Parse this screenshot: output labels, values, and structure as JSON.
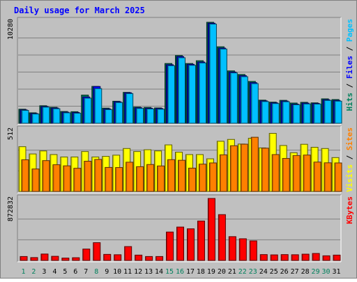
{
  "chart_data": {
    "type": "bar",
    "title": "Daily usage for March 2025",
    "categories": [
      "1",
      "2",
      "3",
      "4",
      "5",
      "6",
      "7",
      "8",
      "9",
      "10",
      "11",
      "12",
      "13",
      "14",
      "15",
      "16",
      "17",
      "18",
      "19",
      "20",
      "21",
      "22",
      "23",
      "24",
      "25",
      "26",
      "27",
      "28",
      "29",
      "30",
      "31"
    ],
    "weekend_days": [
      "1",
      "2",
      "8",
      "15",
      "16",
      "22",
      "23",
      "29",
      "30"
    ],
    "panels": [
      {
        "id": "hits",
        "max_label": "10280",
        "ymax": 10280,
        "axis_labels": [
          {
            "text": "Hits",
            "color": "#00805c"
          },
          {
            "text": "Files",
            "color": "#0000ff"
          },
          {
            "text": "Pages",
            "color": "#00c0ff"
          }
        ],
        "series": [
          {
            "name": "Hits",
            "color": "#00805c",
            "values": [
              1410,
              1050,
              1760,
              1600,
              1180,
              1160,
              2830,
              3700,
              1520,
              2210,
              3100,
              1620,
              1590,
              1540,
              6000,
              6800,
              6000,
              6280,
              10140,
              7680,
              5260,
              4900,
              4200,
              2320,
              2120,
              2300,
              2030,
              2100,
              2050,
              2450,
              2380
            ]
          },
          {
            "name": "Files",
            "color": "#0000ff",
            "values": [
              1340,
              980,
              1680,
              1530,
              1110,
              1080,
              2640,
              3690,
              1440,
              2160,
              3060,
              1560,
              1510,
              1480,
              5880,
              6700,
              5920,
              6150,
              10050,
              7550,
              5150,
              4780,
              4080,
              2250,
              2050,
              2230,
              1920,
              2020,
              1990,
              2360,
              2290
            ]
          },
          {
            "name": "Pages",
            "color": "#00c0ff",
            "values": [
              1290,
              930,
              1620,
              1460,
              1050,
              1010,
              2520,
              3480,
              1370,
              2080,
              2980,
              1490,
              1440,
              1410,
              5780,
              6580,
              5820,
              6060,
              9960,
              7460,
              5060,
              4680,
              3980,
              2180,
              1980,
              2160,
              1860,
              1940,
              1930,
              2290,
              2220
            ]
          }
        ]
      },
      {
        "id": "visits",
        "max_label": "512",
        "ymax": 512,
        "axis_labels": [
          {
            "text": "Visits",
            "color": "#ffff00"
          },
          {
            "text": "Sites",
            "color": "#ff8000"
          }
        ],
        "series": [
          {
            "name": "Visits",
            "color": "#ffff00",
            "values": [
              370,
              310,
              335,
              305,
              285,
              285,
              330,
              285,
              290,
              300,
              355,
              330,
              345,
              335,
              385,
              325,
              305,
              305,
              270,
              415,
              430,
              392,
              440,
              360,
              480,
              380,
              320,
              390,
              365,
              355,
              280
            ]
          },
          {
            "name": "Sites",
            "color": "#ff8000",
            "values": [
              262,
              186,
              255,
              221,
              212,
              192,
              250,
              265,
              199,
              198,
              242,
              205,
              223,
              211,
              263,
              258,
              193,
              226,
              236,
              303,
              378,
              391,
              448,
              358,
              305,
              273,
              297,
              301,
              243,
              237,
              236
            ]
          }
        ]
      },
      {
        "id": "kbytes",
        "max_label": "872832",
        "ymax": 872832,
        "axis_labels": [
          {
            "text": "KBytes",
            "color": "#ff0000"
          }
        ],
        "series": [
          {
            "name": "KBytes",
            "color": "#ff0000",
            "values": [
              55000,
              40000,
              90000,
              58000,
              33000,
              38000,
              160000,
              250000,
              85000,
              80000,
              195000,
              75000,
              55000,
              55000,
              400000,
              470000,
              445000,
              555000,
              872832,
              645000,
              335000,
              305000,
              275000,
              82000,
              78000,
              82000,
              80000,
              88000,
              98000,
              65000,
              75000
            ]
          }
        ]
      }
    ]
  }
}
